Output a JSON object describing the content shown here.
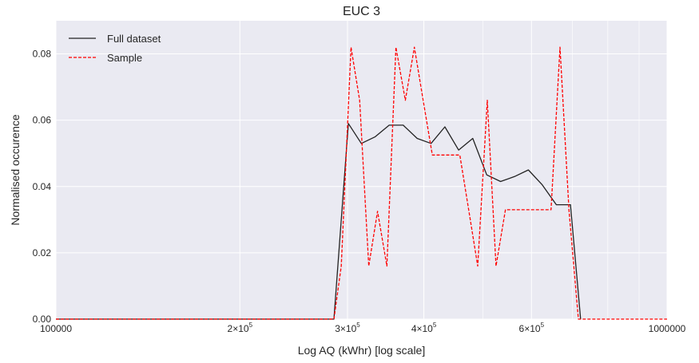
{
  "chart_data": {
    "type": "line",
    "title": "EUC 3",
    "xlabel": "Log AQ (kWhr) [log scale]",
    "ylabel": "Normalised occurence",
    "x_scale": "log",
    "xlim": [
      100000,
      1000000
    ],
    "ylim": [
      0,
      0.09
    ],
    "grid": true,
    "legend_position": "top-left",
    "x_ticks": [
      {
        "value": 100000,
        "label": "100000",
        "sup": ""
      },
      {
        "value": 200000,
        "label": "2×10",
        "sup": "5"
      },
      {
        "value": 300000,
        "label": "3×10",
        "sup": "5"
      },
      {
        "value": 400000,
        "label": "4×10",
        "sup": "5"
      },
      {
        "value": 600000,
        "label": "6×10",
        "sup": "5"
      },
      {
        "value": 1000000,
        "label": "1000000",
        "sup": ""
      }
    ],
    "x_minor_ticks": [
      500000,
      700000,
      800000,
      900000
    ],
    "y_ticks": [
      {
        "value": 0.0,
        "label": "0.00"
      },
      {
        "value": 0.02,
        "label": "0.02"
      },
      {
        "value": 0.04,
        "label": "0.04"
      },
      {
        "value": 0.06,
        "label": "0.06"
      },
      {
        "value": 0.08,
        "label": "0.08"
      }
    ],
    "series": [
      {
        "name": "Full dataset",
        "color": "#222222",
        "style": "solid",
        "x": [
          100000,
          285000,
          301000,
          316000,
          333000,
          351000,
          370000,
          390000,
          411000,
          433000,
          456000,
          481000,
          507000,
          534000,
          563000,
          593000,
          625000,
          659000,
          695000,
          722000
        ],
        "y": [
          0.0,
          0.0,
          0.059,
          0.053,
          0.055,
          0.0585,
          0.0585,
          0.0545,
          0.053,
          0.058,
          0.051,
          0.0545,
          0.0435,
          0.0415,
          0.043,
          0.045,
          0.0405,
          0.0345,
          0.0345,
          0.0
        ]
      },
      {
        "name": "Sample",
        "color": "#ff0000",
        "style": "dashed",
        "x": [
          100000,
          285000,
          293000,
          304000,
          314000,
          325000,
          336000,
          348000,
          360000,
          373000,
          386000,
          399000,
          413000,
          427000,
          442000,
          458000,
          474000,
          490000,
          508000,
          525000,
          544000,
          563000,
          582000,
          603000,
          624000,
          646000,
          668000,
          691000,
          716000,
          1000000
        ],
        "y": [
          0.0,
          0.0,
          0.016,
          0.082,
          0.066,
          0.016,
          0.0325,
          0.016,
          0.082,
          0.066,
          0.082,
          0.066,
          0.0495,
          0.0495,
          0.0495,
          0.0495,
          0.0325,
          0.016,
          0.066,
          0.016,
          0.033,
          0.033,
          0.033,
          0.033,
          0.033,
          0.033,
          0.082,
          0.033,
          0.0,
          0.0
        ]
      }
    ]
  }
}
